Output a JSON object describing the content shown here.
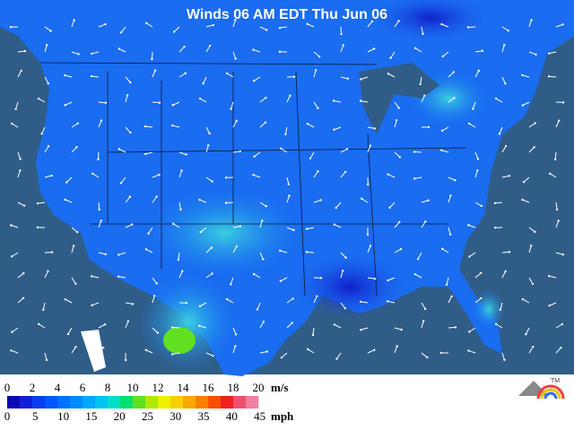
{
  "title": "Winds 06 AM EDT Thu Jun 06",
  "legend": {
    "colors": [
      "#0a0ab4",
      "#1020d8",
      "#0a3cf0",
      "#0056ff",
      "#0070ff",
      "#008cff",
      "#00a8ff",
      "#00c4f0",
      "#00e0c8",
      "#00e070",
      "#60e020",
      "#b0e800",
      "#f0f000",
      "#f8d000",
      "#f8a800",
      "#f88000",
      "#f85000",
      "#f02020",
      "#f05070",
      "#f080a0"
    ],
    "ms": {
      "unit": "m/s",
      "ticks": [
        0,
        2,
        4,
        6,
        8,
        10,
        12,
        14,
        16,
        18,
        20
      ]
    },
    "mph": {
      "unit": "mph",
      "ticks": [
        0,
        5,
        10,
        15,
        20,
        25,
        30,
        35,
        40,
        45
      ]
    }
  },
  "logo_mark": "TM"
}
